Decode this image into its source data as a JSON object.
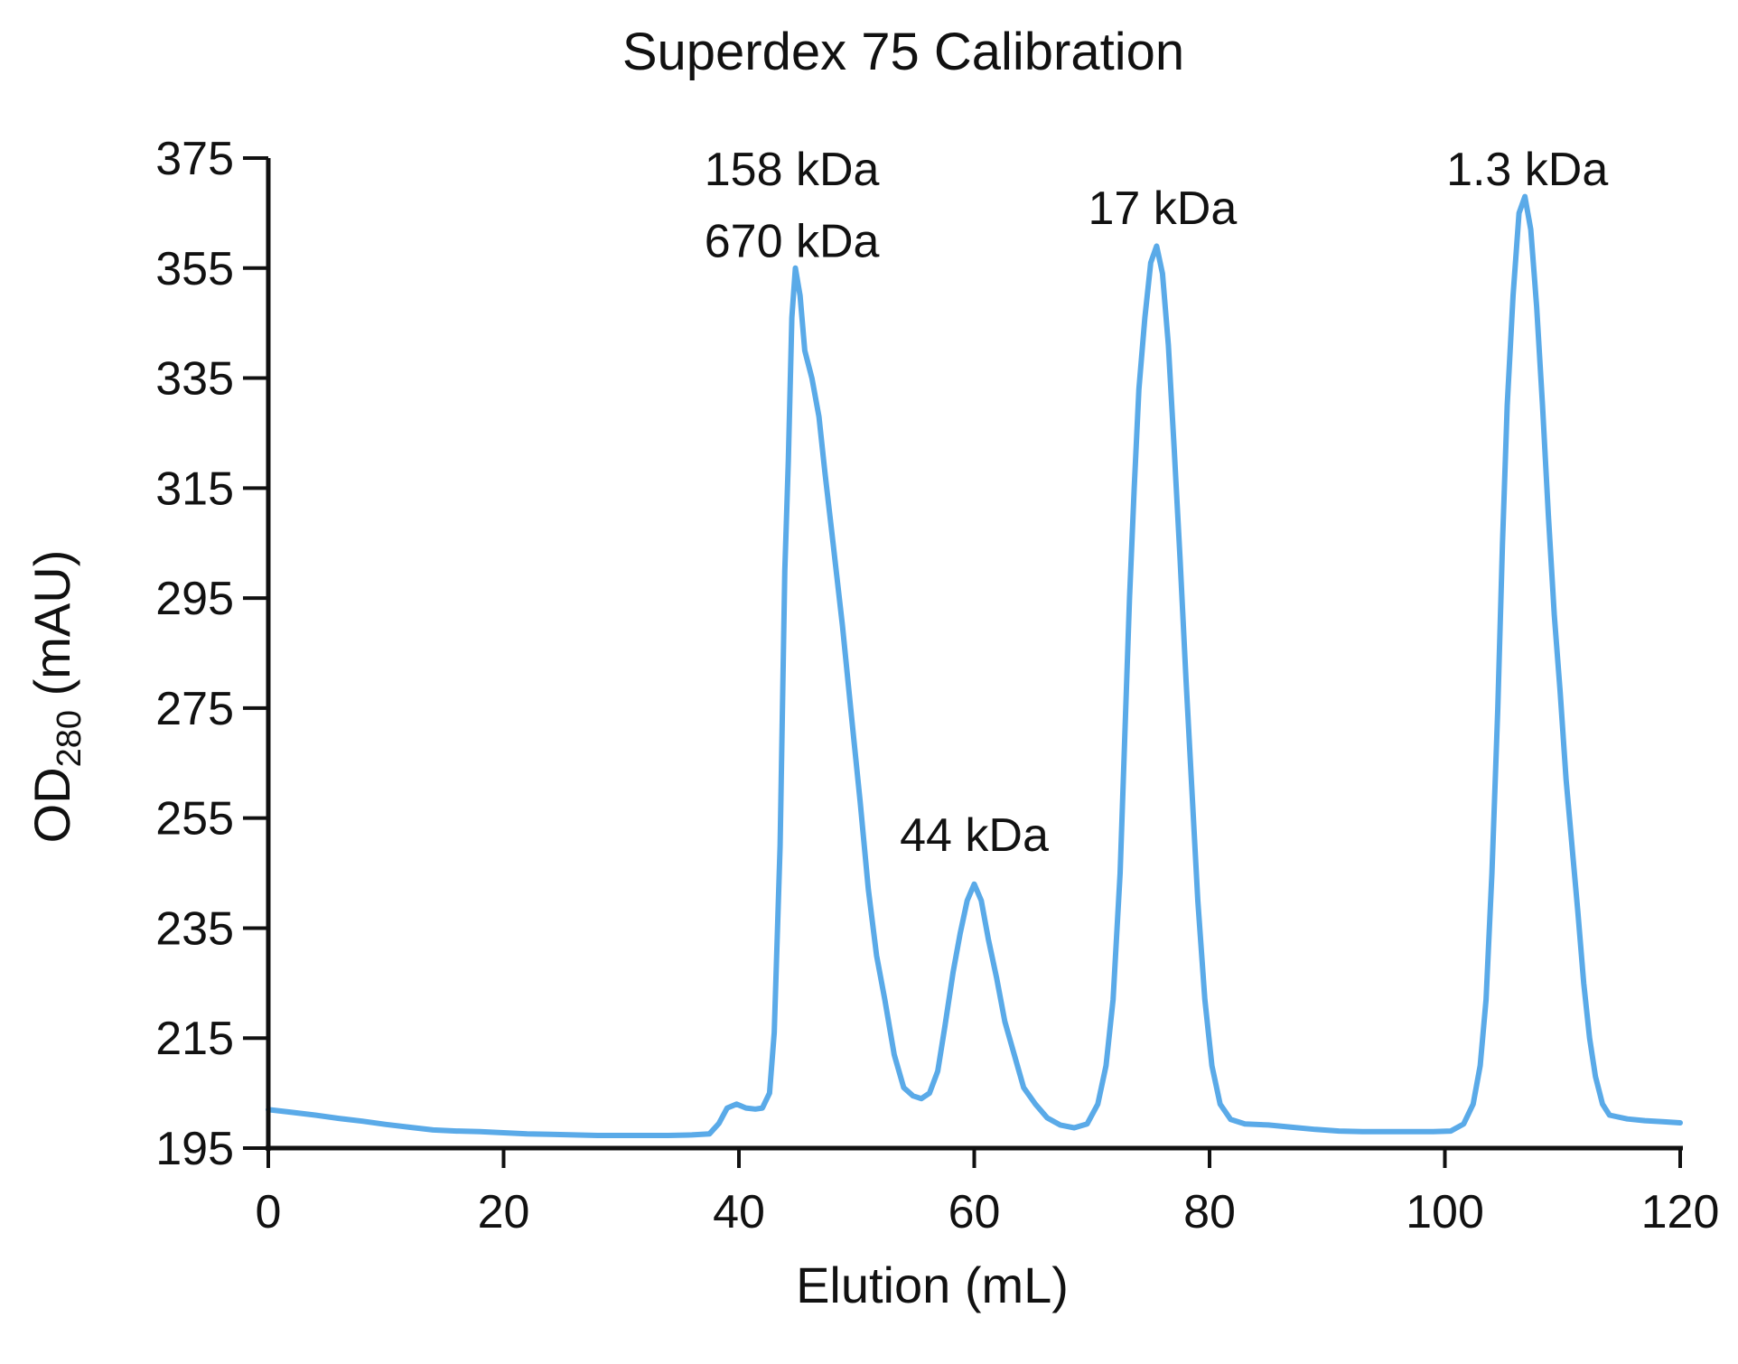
{
  "chart_data": {
    "type": "line",
    "title": "Superdex 75 Calibration",
    "xlabel": "Elution (mL)",
    "ylabel": {
      "main": "OD",
      "sub": "280",
      "unit": " (mAU)"
    },
    "xlim": [
      0,
      120
    ],
    "ylim": [
      195,
      375
    ],
    "xticks": [
      0,
      20,
      40,
      60,
      80,
      100,
      120
    ],
    "yticks": [
      195,
      215,
      235,
      255,
      275,
      295,
      315,
      335,
      355,
      375
    ],
    "grid": false,
    "legend": "none",
    "colors": {
      "line": "#5aaae8",
      "axis": "#111111",
      "text": "#111111"
    },
    "series": [
      {
        "points": [
          [
            0,
            202
          ],
          [
            2,
            201.5
          ],
          [
            4,
            201
          ],
          [
            6,
            200.4
          ],
          [
            8,
            199.9
          ],
          [
            10,
            199.3
          ],
          [
            12,
            198.8
          ],
          [
            14,
            198.3
          ],
          [
            16,
            198.1
          ],
          [
            18,
            198
          ],
          [
            20,
            197.8
          ],
          [
            22,
            197.6
          ],
          [
            24,
            197.5
          ],
          [
            26,
            197.4
          ],
          [
            28,
            197.3
          ],
          [
            30,
            197.3
          ],
          [
            32,
            197.3
          ],
          [
            34,
            197.3
          ],
          [
            36,
            197.4
          ],
          [
            37.5,
            197.6
          ],
          [
            38.3,
            199.5
          ],
          [
            39,
            202.3
          ],
          [
            39.8,
            203
          ],
          [
            40.6,
            202.3
          ],
          [
            41.4,
            202.1
          ],
          [
            42,
            202.3
          ],
          [
            42.6,
            205
          ],
          [
            43,
            216
          ],
          [
            43.5,
            250
          ],
          [
            43.9,
            300
          ],
          [
            44.2,
            320
          ],
          [
            44.5,
            346
          ],
          [
            44.8,
            355
          ],
          [
            45.2,
            350
          ],
          [
            45.6,
            340
          ],
          [
            46.2,
            335
          ],
          [
            46.8,
            328
          ],
          [
            47.3,
            318
          ],
          [
            48,
            305
          ],
          [
            48.8,
            290
          ],
          [
            49.5,
            275
          ],
          [
            50.3,
            258
          ],
          [
            51,
            242
          ],
          [
            51.7,
            230
          ],
          [
            52.4,
            222
          ],
          [
            53.2,
            212
          ],
          [
            54,
            206
          ],
          [
            54.8,
            204.5
          ],
          [
            55.5,
            204
          ],
          [
            56.2,
            205
          ],
          [
            56.9,
            209
          ],
          [
            57.5,
            217
          ],
          [
            58.2,
            227
          ],
          [
            58.8,
            234
          ],
          [
            59.4,
            240
          ],
          [
            60,
            243
          ],
          [
            60.6,
            240
          ],
          [
            61.2,
            233
          ],
          [
            61.9,
            226
          ],
          [
            62.6,
            218
          ],
          [
            63.4,
            212
          ],
          [
            64.2,
            206
          ],
          [
            65.2,
            203
          ],
          [
            66.2,
            200.5
          ],
          [
            67.3,
            199.2
          ],
          [
            68.5,
            198.7
          ],
          [
            69.6,
            199.4
          ],
          [
            70.5,
            203
          ],
          [
            71.2,
            210
          ],
          [
            71.8,
            222
          ],
          [
            72.4,
            245
          ],
          [
            72.8,
            270
          ],
          [
            73.2,
            295
          ],
          [
            73.6,
            315
          ],
          [
            74,
            333
          ],
          [
            74.5,
            346
          ],
          [
            75,
            356
          ],
          [
            75.5,
            359
          ],
          [
            76,
            354
          ],
          [
            76.5,
            341
          ],
          [
            77,
            322
          ],
          [
            77.5,
            302
          ],
          [
            78,
            280
          ],
          [
            78.5,
            260
          ],
          [
            79,
            240
          ],
          [
            79.6,
            222
          ],
          [
            80.2,
            210
          ],
          [
            80.9,
            203
          ],
          [
            81.8,
            200.2
          ],
          [
            83,
            199.4
          ],
          [
            85,
            199.2
          ],
          [
            87,
            198.8
          ],
          [
            89,
            198.4
          ],
          [
            91,
            198.1
          ],
          [
            93,
            198
          ],
          [
            95,
            198
          ],
          [
            97,
            198
          ],
          [
            99,
            198
          ],
          [
            100.5,
            198.1
          ],
          [
            101.6,
            199.4
          ],
          [
            102.4,
            203
          ],
          [
            103,
            210
          ],
          [
            103.5,
            222
          ],
          [
            104,
            245
          ],
          [
            104.5,
            275
          ],
          [
            104.9,
            305
          ],
          [
            105.3,
            330
          ],
          [
            105.8,
            350
          ],
          [
            106.3,
            365
          ],
          [
            106.8,
            368
          ],
          [
            107.3,
            362
          ],
          [
            107.8,
            348
          ],
          [
            108.3,
            330
          ],
          [
            108.8,
            310
          ],
          [
            109.3,
            292
          ],
          [
            109.8,
            278
          ],
          [
            110.3,
            262
          ],
          [
            110.8,
            250
          ],
          [
            111.3,
            238
          ],
          [
            111.8,
            225
          ],
          [
            112.3,
            215
          ],
          [
            112.8,
            208
          ],
          [
            113.4,
            203
          ],
          [
            114,
            201
          ],
          [
            115.5,
            200.3
          ],
          [
            117,
            200
          ],
          [
            118.5,
            199.8
          ],
          [
            120,
            199.6
          ]
        ]
      }
    ],
    "annotations": [
      {
        "text": "158 kDa",
        "x": 44.5,
        "y": 373
      },
      {
        "text": "670 kDa",
        "x": 44.5,
        "y": 360
      },
      {
        "text": "44 kDa",
        "x": 60,
        "y": 252
      },
      {
        "text": "17 kDa",
        "x": 76,
        "y": 366
      },
      {
        "text": "1.3 kDa",
        "x": 107,
        "y": 373
      }
    ]
  }
}
